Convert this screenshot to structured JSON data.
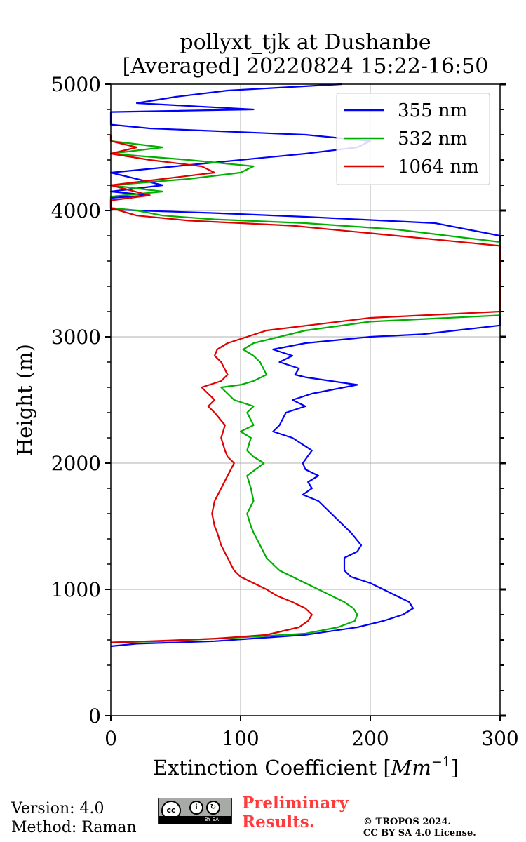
{
  "chart_data": {
    "type": "line",
    "title": "pollyxt_tjk at Dushanbe",
    "subtitle": "[Averaged] 20220824 15:22-16:50",
    "xlabel": "Extinction Coefficient [Mm⁻¹]",
    "xlabel_base": "Extinction Coefficient [",
    "xlabel_unit": "Mm",
    "xlabel_exp": "−1",
    "xlabel_end": "]",
    "ylabel": "Height (m)",
    "xlim": [
      0,
      300
    ],
    "ylim": [
      0,
      5000
    ],
    "xticks": [
      "0",
      "100",
      "200",
      "300"
    ],
    "yticks": [
      "0",
      "1000",
      "2000",
      "3000",
      "4000",
      "5000"
    ],
    "grid": true,
    "legend_position": "top-right",
    "series": [
      {
        "name": "355 nm",
        "color": "#0000ff",
        "points": [
          [
            0,
            550
          ],
          [
            20,
            570
          ],
          [
            80,
            590
          ],
          [
            150,
            640
          ],
          [
            190,
            700
          ],
          [
            210,
            750
          ],
          [
            225,
            800
          ],
          [
            233,
            850
          ],
          [
            230,
            900
          ],
          [
            220,
            950
          ],
          [
            210,
            1000
          ],
          [
            200,
            1050
          ],
          [
            185,
            1100
          ],
          [
            180,
            1150
          ],
          [
            180,
            1250
          ],
          [
            190,
            1300
          ],
          [
            193,
            1350
          ],
          [
            185,
            1450
          ],
          [
            180,
            1500
          ],
          [
            170,
            1600
          ],
          [
            160,
            1700
          ],
          [
            148,
            1750
          ],
          [
            155,
            1800
          ],
          [
            152,
            1850
          ],
          [
            160,
            1900
          ],
          [
            150,
            1950
          ],
          [
            148,
            2000
          ],
          [
            155,
            2100
          ],
          [
            140,
            2200
          ],
          [
            125,
            2250
          ],
          [
            130,
            2300
          ],
          [
            135,
            2400
          ],
          [
            150,
            2450
          ],
          [
            140,
            2500
          ],
          [
            155,
            2550
          ],
          [
            190,
            2620
          ],
          [
            150,
            2680
          ],
          [
            142,
            2700
          ],
          [
            145,
            2750
          ],
          [
            130,
            2800
          ],
          [
            140,
            2850
          ],
          [
            125,
            2900
          ],
          [
            150,
            2950
          ],
          [
            200,
            3000
          ],
          [
            240,
            3020
          ],
          [
            300,
            3090
          ],
          [
            300,
            3800
          ],
          [
            250,
            3900
          ],
          [
            150,
            3950
          ],
          [
            80,
            3980
          ],
          [
            20,
            4000
          ],
          [
            0,
            4010
          ],
          [
            0,
            4100
          ],
          [
            30,
            4120
          ],
          [
            0,
            4150
          ],
          [
            40,
            4200
          ],
          [
            0,
            4300
          ],
          [
            50,
            4350
          ],
          [
            80,
            4380
          ],
          [
            150,
            4450
          ],
          [
            190,
            4500
          ],
          [
            200,
            4550
          ],
          [
            150,
            4600
          ],
          [
            30,
            4650
          ],
          [
            0,
            4680
          ],
          [
            0,
            4780
          ],
          [
            110,
            4800
          ],
          [
            20,
            4850
          ],
          [
            50,
            4900
          ],
          [
            90,
            4950
          ],
          [
            178,
            5000
          ]
        ]
      },
      {
        "name": "532 nm",
        "color": "#00b000",
        "points": [
          [
            0,
            580
          ],
          [
            40,
            590
          ],
          [
            100,
            620
          ],
          [
            150,
            650
          ],
          [
            175,
            700
          ],
          [
            188,
            750
          ],
          [
            190,
            800
          ],
          [
            187,
            850
          ],
          [
            180,
            900
          ],
          [
            170,
            950
          ],
          [
            160,
            1000
          ],
          [
            150,
            1050
          ],
          [
            140,
            1100
          ],
          [
            130,
            1150
          ],
          [
            120,
            1250
          ],
          [
            115,
            1350
          ],
          [
            110,
            1450
          ],
          [
            108,
            1500
          ],
          [
            105,
            1600
          ],
          [
            110,
            1700
          ],
          [
            108,
            1800
          ],
          [
            105,
            1900
          ],
          [
            118,
            2000
          ],
          [
            110,
            2050
          ],
          [
            105,
            2100
          ],
          [
            108,
            2200
          ],
          [
            100,
            2250
          ],
          [
            110,
            2300
          ],
          [
            105,
            2400
          ],
          [
            110,
            2450
          ],
          [
            95,
            2500
          ],
          [
            85,
            2600
          ],
          [
            100,
            2620
          ],
          [
            110,
            2650
          ],
          [
            120,
            2700
          ],
          [
            115,
            2800
          ],
          [
            110,
            2850
          ],
          [
            102,
            2900
          ],
          [
            110,
            2950
          ],
          [
            150,
            3050
          ],
          [
            200,
            3120
          ],
          [
            300,
            3170
          ],
          [
            300,
            3750
          ],
          [
            220,
            3850
          ],
          [
            150,
            3900
          ],
          [
            80,
            3930
          ],
          [
            40,
            3960
          ],
          [
            20,
            4000
          ],
          [
            0,
            4020
          ],
          [
            0,
            4110
          ],
          [
            40,
            4150
          ],
          [
            0,
            4200
          ],
          [
            60,
            4250
          ],
          [
            100,
            4300
          ],
          [
            110,
            4350
          ],
          [
            60,
            4400
          ],
          [
            0,
            4450
          ],
          [
            40,
            4500
          ],
          [
            0,
            4550
          ],
          [
            0,
            4600
          ]
        ]
      },
      {
        "name": "1064 nm",
        "color": "#e00000",
        "points": [
          [
            0,
            580
          ],
          [
            30,
            590
          ],
          [
            80,
            610
          ],
          [
            120,
            640
          ],
          [
            145,
            700
          ],
          [
            152,
            750
          ],
          [
            155,
            800
          ],
          [
            150,
            850
          ],
          [
            140,
            900
          ],
          [
            128,
            950
          ],
          [
            120,
            1000
          ],
          [
            110,
            1050
          ],
          [
            100,
            1100
          ],
          [
            95,
            1150
          ],
          [
            90,
            1250
          ],
          [
            85,
            1350
          ],
          [
            82,
            1450
          ],
          [
            80,
            1500
          ],
          [
            78,
            1600
          ],
          [
            80,
            1700
          ],
          [
            85,
            1800
          ],
          [
            90,
            1900
          ],
          [
            95,
            2000
          ],
          [
            90,
            2050
          ],
          [
            88,
            2100
          ],
          [
            85,
            2200
          ],
          [
            88,
            2300
          ],
          [
            80,
            2400
          ],
          [
            75,
            2450
          ],
          [
            80,
            2500
          ],
          [
            70,
            2600
          ],
          [
            85,
            2650
          ],
          [
            90,
            2700
          ],
          [
            85,
            2800
          ],
          [
            80,
            2850
          ],
          [
            82,
            2900
          ],
          [
            90,
            2950
          ],
          [
            120,
            3050
          ],
          [
            200,
            3150
          ],
          [
            300,
            3200
          ],
          [
            300,
            3720
          ],
          [
            200,
            3820
          ],
          [
            140,
            3880
          ],
          [
            60,
            3920
          ],
          [
            20,
            3960
          ],
          [
            0,
            4020
          ],
          [
            0,
            4080
          ],
          [
            30,
            4120
          ],
          [
            0,
            4200
          ],
          [
            40,
            4250
          ],
          [
            80,
            4300
          ],
          [
            70,
            4350
          ],
          [
            30,
            4400
          ],
          [
            0,
            4450
          ],
          [
            20,
            4500
          ],
          [
            0,
            4550
          ],
          [
            0,
            4600
          ]
        ]
      }
    ]
  },
  "footer": {
    "version": "Version: 4.0",
    "method": "Method: Raman",
    "preliminary_line1": "Preliminary",
    "preliminary_line2": "Results.",
    "copyright_line1": "© TROPOS 2024.",
    "copyright_line2": "CC BY SA 4.0 License.",
    "cc_badge_text": "BY   SA"
  }
}
